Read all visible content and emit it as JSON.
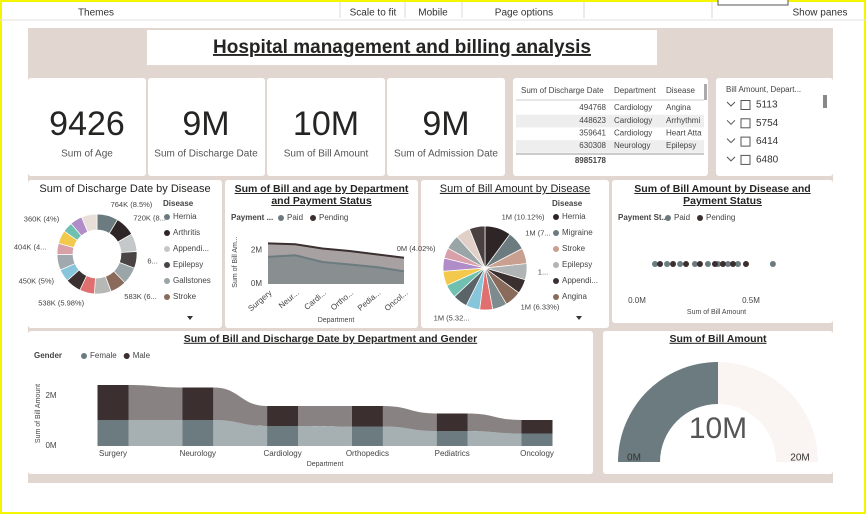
{
  "toolbar": [
    "Themes",
    "Scale to fit",
    "Mobile",
    "Page options",
    "Show panes"
  ],
  "title": "Hospital management and billing analysis",
  "cards": [
    {
      "value": 9426,
      "label": "Sum of Age"
    },
    {
      "value": "9M",
      "label": "Sum of Discharge Date"
    },
    {
      "value": "10M",
      "label": "Sum of Bill Amount"
    },
    {
      "value": "9M",
      "label": "Sum of Admission Date"
    }
  ],
  "table": {
    "columns": [
      "Sum of Discharge Date",
      "Department",
      "Disease"
    ],
    "rows": [
      [
        494768,
        "Cardiology",
        "Angina"
      ],
      [
        448623,
        "Cardiology",
        "Arrhythmi"
      ],
      [
        359641,
        "Cardiology",
        "Heart Atta"
      ],
      [
        630308,
        "Neurology",
        "Epilepsy"
      ]
    ],
    "total": 8985178
  },
  "slicer": {
    "title": "Bill Amount, Depart...",
    "items": [
      "5113",
      "5754",
      "6414",
      "6480"
    ]
  },
  "chart_data": [
    {
      "type": "pie",
      "donut": true,
      "title": "Sum of Discharge Date by Disease",
      "legend_title": "Disease",
      "categories": [
        "Hernia",
        "Arthritis",
        "Appendi...",
        "Epilepsy",
        "Gallstones",
        "Stroke",
        null,
        null,
        null,
        null,
        null,
        null,
        null,
        null,
        null,
        null
      ],
      "values": [
        764000,
        720000,
        650000,
        600000,
        620000,
        583000,
        600000,
        538000,
        560000,
        450000,
        560000,
        404000,
        480000,
        360000,
        440000,
        560000
      ],
      "value_labels": [
        "764K (8.5%)",
        "720K (8...",
        null,
        "6...",
        null,
        "583K (6...",
        null,
        "538K (5.98%)",
        null,
        "450K (5%)",
        null,
        "404K (4...",
        null,
        "360K (4%)",
        null,
        null
      ],
      "colors": [
        "#6b7b80",
        "#2e2626",
        "#c4c8c8",
        "#4a4444",
        "#9aa5a8",
        "#8a6a5a",
        "#b5b8b4",
        "#e07070",
        "#3a3030",
        "#86c5da",
        "#a0a8b0",
        "#d8a0a8",
        "#f2c94c",
        "#6fc0b0",
        "#b08cc8",
        "#e8e0d8"
      ]
    },
    {
      "type": "area",
      "title": "Sum of Bill and age by Department and Payment Status",
      "legend_title": "Payment ...",
      "categories": [
        "Surgery",
        "Neur...",
        "Cardi...",
        "Ortho...",
        "Pedia...",
        "Oncol..."
      ],
      "series": [
        {
          "name": "Paid",
          "color": "#6b7b80",
          "values": [
            1600000,
            1700000,
            1300000,
            1150000,
            1000000,
            750000
          ]
        },
        {
          "name": "Pending",
          "color": "#3b2f2f",
          "values": [
            2400000,
            2350000,
            2100000,
            1950000,
            1750000,
            1550000
          ]
        }
      ],
      "ylim": [
        0,
        2600000
      ],
      "yticks": [
        {
          "value": 0,
          "label": "0M"
        },
        {
          "value": 2000000,
          "label": "2M"
        }
      ],
      "y_label": "Sum of Bill Am...",
      "x_label": "Department"
    },
    {
      "type": "pie",
      "donut": false,
      "title": "Sum of Bill Amount by Disease",
      "legend_title": "Disease",
      "categories": [
        "Hernia",
        "Migraine",
        "Stroke",
        "Epilepsy",
        "Appendi...",
        "Angina",
        null,
        null,
        null,
        null,
        null,
        null,
        null,
        null,
        null,
        null,
        null
      ],
      "values": [
        1012000,
        720000,
        600000,
        620000,
        560000,
        633000,
        560000,
        500000,
        532000,
        560000,
        520000,
        560000,
        500000,
        402000,
        560000,
        560000,
        600000
      ],
      "value_labels": [
        "1M (10.12%)",
        "1M (7...",
        null,
        "1...",
        null,
        "1M (6.33%)",
        null,
        null,
        "1M (5.32...",
        null,
        null,
        null,
        null,
        "0M (4.02%)",
        null,
        null,
        null
      ],
      "colors": [
        "#2e2626",
        "#6b7b80",
        "#c9a090",
        "#b0b4b4",
        "#3a3030",
        "#8a6a5a",
        "#7d8a8e",
        "#e07070",
        "#86c5da",
        "#5a6468",
        "#6fc0b0",
        "#f2c94c",
        "#b08cc8",
        "#d8a0a8",
        "#9aa5a8",
        "#e0d0c8",
        "#4a4040"
      ]
    },
    {
      "type": "strip",
      "title": "Sum of Bill Amount by Disease and Payment Status",
      "legend_title": "Payment St...",
      "series": [
        {
          "name": "Paid",
          "color": "#6b7b80",
          "values": [
            79000,
            132000,
            189000,
            254000,
            311000,
            355000,
            399000,
            443000,
            596000
          ]
        },
        {
          "name": "Pending",
          "color": "#3b2f2f",
          "values": [
            101000,
            158000,
            215000,
            276000,
            342000,
            377000,
            421000,
            478000
          ]
        }
      ],
      "xlim": [
        0,
        750000
      ],
      "xticks": [
        {
          "value": 0,
          "label": "0.0M"
        },
        {
          "value": 500000,
          "label": "0.5M"
        }
      ],
      "x_label": "Sum of Bill Amount"
    },
    {
      "type": "ribbon",
      "title": "Sum of Bill and Discharge Date by Department and Gender",
      "legend_title": "Gender",
      "categories": [
        "Surgery",
        "Neurology",
        "Cardiology",
        "Orthopedics",
        "Pediatrics",
        "Oncology"
      ],
      "series": [
        {
          "name": "Female",
          "color": "#6b7b80",
          "values": [
            1040000,
            1040000,
            800000,
            780000,
            600000,
            500000
          ]
        },
        {
          "name": "Male",
          "color": "#3b2f2f",
          "values": [
            1400000,
            1300000,
            800000,
            820000,
            700000,
            540000
          ]
        }
      ],
      "ylim": [
        0,
        2600000
      ],
      "yticks": [
        {
          "value": 0,
          "label": "0M"
        },
        {
          "value": 2000000,
          "label": "2M"
        }
      ],
      "y_label": "Sum of Bill Amount",
      "x_label": "Department"
    },
    {
      "type": "gauge",
      "title": "Sum of Bill Amount",
      "value": 10000000,
      "value_label": "10M",
      "ylim": [
        0,
        20000000
      ],
      "yticks": [
        {
          "value": 0,
          "label": "0M"
        },
        {
          "value": 20000000,
          "label": "20M"
        }
      ],
      "color": "#6b7b80",
      "track_color": "#faf5f2"
    }
  ]
}
